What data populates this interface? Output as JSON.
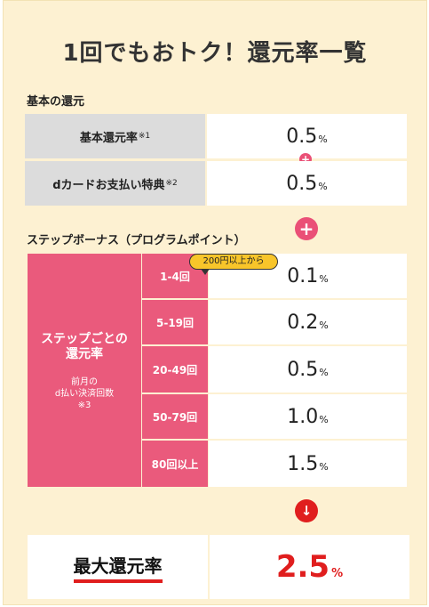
{
  "title": "1回でもおトク！還元率一覧",
  "basic": {
    "section_label": "基本の還元",
    "rows": [
      {
        "label": "基本還元率",
        "note": "※1",
        "value": "0.5",
        "unit": "%"
      },
      {
        "label": "dカードお支払い特典",
        "note": "※2",
        "value": "0.5",
        "unit": "%"
      }
    ]
  },
  "bonus": {
    "section_label": "ステップボーナス（プログラムポイント）",
    "group_label_line1": "ステップごとの",
    "group_label_line2": "還元率",
    "group_sub_line1": "前月の",
    "group_sub_line2": "d払い決済回数",
    "group_sub_line3": "※3",
    "badge": "200円以上から",
    "rows": [
      {
        "label": "1-4回",
        "value": "0.1",
        "unit": "%"
      },
      {
        "label": "5-19回",
        "value": "0.2",
        "unit": "%"
      },
      {
        "label": "20-49回",
        "value": "0.5",
        "unit": "%"
      },
      {
        "label": "50-79回",
        "value": "1.0",
        "unit": "%"
      },
      {
        "label": "80回以上",
        "value": "1.5",
        "unit": "%"
      }
    ]
  },
  "icons": {
    "plus": "+",
    "arrow_down": "↓"
  },
  "max": {
    "label": "最大還元率",
    "value": "2.5",
    "unit": "%"
  },
  "colors": {
    "pink": "#ea5a7c",
    "red": "#e01e1e",
    "background": "#fdf1d2",
    "badge": "#f8c52a"
  }
}
